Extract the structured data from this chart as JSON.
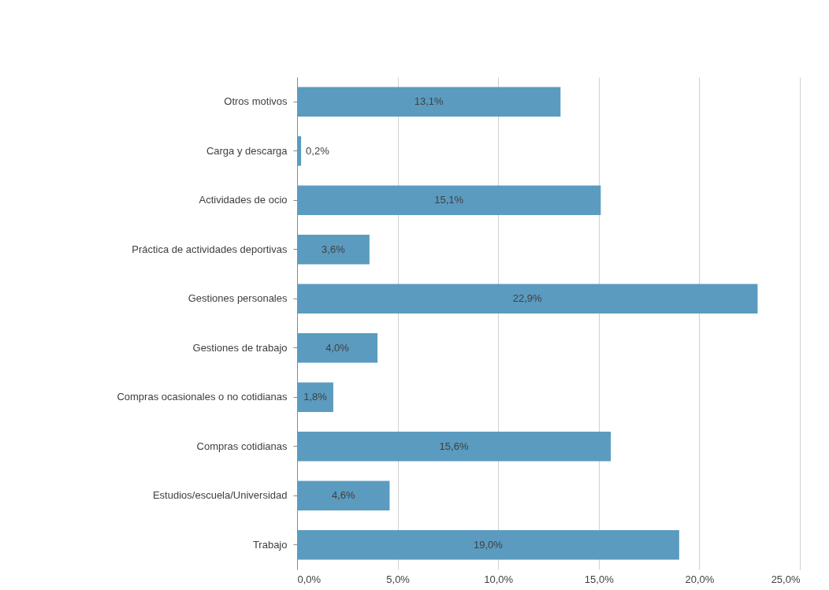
{
  "chart_data": {
    "type": "bar",
    "orientation": "horizontal",
    "categories": [
      "Otros motivos",
      "Carga y descarga",
      "Actividades de ocio",
      "Práctica de actividades deportivas",
      "Gestiones personales",
      "Gestiones de trabajo",
      "Compras ocasionales o no cotidianas",
      "Compras cotidianas",
      "Estudios/escuela/Universidad",
      "Trabajo"
    ],
    "values": [
      13.1,
      0.2,
      15.1,
      3.6,
      22.9,
      4.0,
      1.8,
      15.6,
      4.6,
      19.0
    ],
    "value_labels": [
      "13,1%",
      "0,2%",
      "15,1%",
      "3,6%",
      "22,9%",
      "4,0%",
      "1,8%",
      "15,6%",
      "4,6%",
      "19,0%"
    ],
    "color": "#5b9bbf",
    "xlim": [
      0,
      25
    ],
    "xticks": [
      {
        "value": 0,
        "label": "0,0%"
      },
      {
        "value": 5,
        "label": "5,0%"
      },
      {
        "value": 10,
        "label": "10,0%"
      },
      {
        "value": 15,
        "label": "15,0%"
      },
      {
        "value": 20,
        "label": "20,0%"
      },
      {
        "value": 25,
        "label": "25,0%"
      }
    ],
    "grid": "x"
  }
}
